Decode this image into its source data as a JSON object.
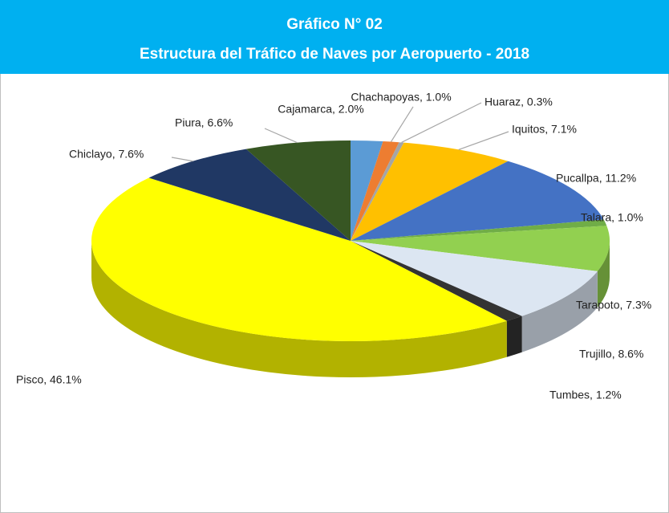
{
  "chart_data": {
    "type": "pie",
    "title": "Gráfico N° 02",
    "subtitle": "Estructura del Tráfico de Naves por Aeropuerto - 2018",
    "categories": [
      "Cajamarca",
      "Chachapoyas",
      "Huaraz",
      "Iquitos",
      "Pucallpa",
      "Talara",
      "Tarapoto",
      "Trujillo",
      "Tumbes",
      "Pisco",
      "Chiclayo",
      "Piura"
    ],
    "values": [
      2.0,
      1.0,
      0.3,
      7.1,
      11.2,
      1.0,
      7.3,
      8.6,
      1.2,
      46.1,
      7.6,
      6.6
    ],
    "value_labels": [
      "Cajamarca, 2.0%",
      "Chachapoyas, 1.0%",
      "Huaraz, 0.3%",
      "Iquitos, 7.1%",
      "Pucallpa, 11.2%",
      "Talara, 1.0%",
      "Tarapoto, 7.3%",
      "Trujillo, 8.6%",
      "Tumbes, 1.2%",
      "Pisco, 46.1%",
      "Chiclayo, 7.6%",
      "Piura, 6.6%"
    ],
    "colors": [
      "#5b9bd5",
      "#ed7d31",
      "#a5a5a5",
      "#ffc000",
      "#4472c4",
      "#70ad47",
      "#92d050",
      "#dce6f2",
      "#333333",
      "#ffff00",
      "#203864",
      "#375623"
    ]
  }
}
